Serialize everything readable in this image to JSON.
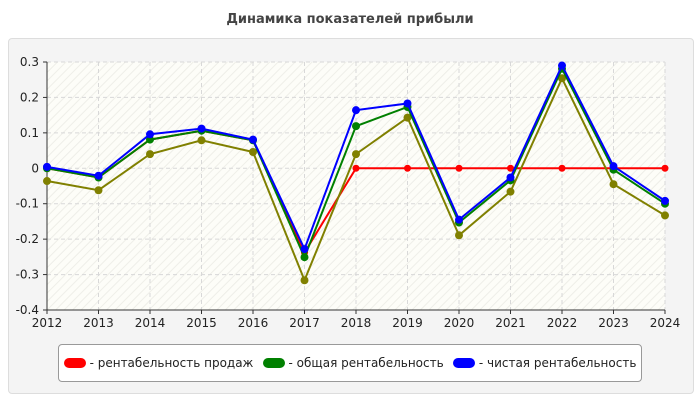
{
  "chart_data": {
    "type": "line",
    "title": "Динамика показателей прибыли",
    "x": [
      2012,
      2013,
      2014,
      2015,
      2016,
      2017,
      2018,
      2019,
      2020,
      2021,
      2022,
      2023,
      2024
    ],
    "ylim": [
      -0.4,
      0.3
    ],
    "yticks": [
      "0.3",
      "0.2",
      "0.1",
      "0",
      "-0.1",
      "-0.2",
      "-0.3",
      "-0.4"
    ],
    "grid": true,
    "legend_position": "bottom",
    "series": [
      {
        "name": "рентабельность продаж",
        "color": "#ff0000",
        "values": [
          0,
          -0.026,
          0.081,
          0.106,
          0.079,
          -0.238,
          0,
          0,
          0,
          0,
          0,
          0,
          0
        ]
      },
      {
        "color": "#808000",
        "values": [
          -0.036,
          -0.062,
          0.04,
          0.079,
          0.046,
          -0.316,
          0.04,
          0.143,
          -0.189,
          -0.066,
          0.254,
          -0.045,
          -0.133
        ]
      },
      {
        "name": "общая рентабельность",
        "color": "#008000",
        "values": [
          0,
          -0.026,
          0.081,
          0.106,
          0.079,
          -0.251,
          0.119,
          0.173,
          -0.153,
          -0.034,
          0.281,
          -0.004,
          -0.1
        ]
      },
      {
        "name": "чистая рентабельность",
        "color": "#0000ff",
        "values": [
          0.004,
          -0.021,
          0.096,
          0.112,
          0.081,
          -0.228,
          0.164,
          0.183,
          -0.145,
          -0.026,
          0.29,
          0.006,
          -0.092
        ]
      }
    ]
  },
  "legend": [
    {
      "label": "- рентабельность продаж",
      "color": "#ff0000"
    },
    {
      "label": "- общая рентабельность",
      "color": "#008000"
    },
    {
      "label": "- чистая рентабельность",
      "color": "#0000ff"
    }
  ]
}
